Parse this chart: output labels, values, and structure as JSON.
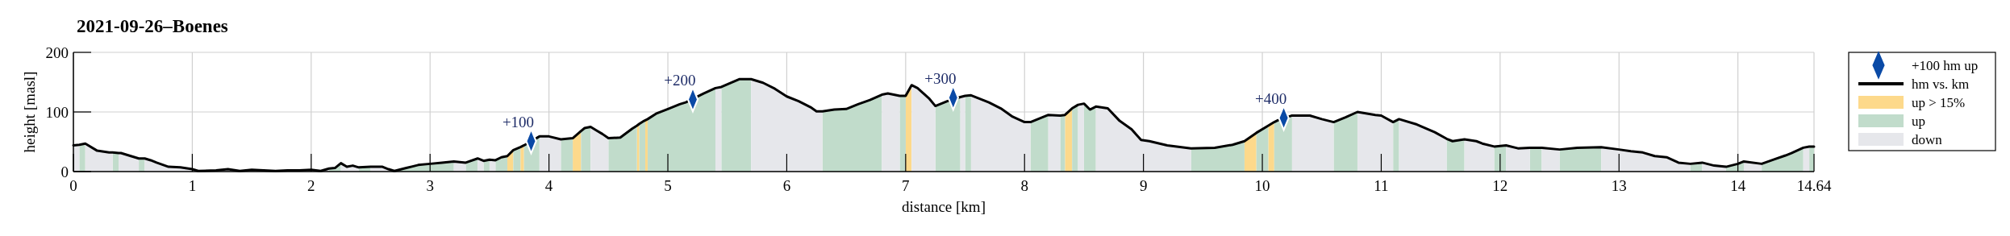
{
  "chart_data": {
    "type": "area",
    "title": "2021-09-26–Boenes",
    "xlabel": "distance [km]",
    "ylabel": "height [masl]",
    "xlim": [
      0,
      14.64
    ],
    "xticks": [
      0,
      1,
      2,
      3,
      4,
      5,
      6,
      7,
      8,
      9,
      10,
      11,
      12,
      13,
      14,
      14.64
    ],
    "ylim": [
      0,
      200
    ],
    "yticks": [
      0,
      100,
      200
    ],
    "grid": true,
    "legend": "right",
    "annotations": [
      {
        "text": "+100",
        "x": 3.85,
        "y": 51
      },
      {
        "text": "+200",
        "x": 5.21,
        "y": 121
      },
      {
        "text": "+300",
        "x": 7.4,
        "y": 124
      },
      {
        "text": "+400",
        "x": 10.18,
        "y": 90
      }
    ],
    "x": [
      0,
      0.05,
      0.1,
      0.2,
      0.3,
      0.33,
      0.38,
      0.4,
      0.45,
      0.5,
      0.55,
      0.6,
      0.65,
      0.7,
      0.8,
      0.9,
      1.0,
      1.05,
      1.2,
      1.3,
      1.4,
      1.5,
      1.6,
      1.7,
      1.8,
      1.9,
      2.0,
      2.08,
      2.15,
      2.2,
      2.25,
      2.3,
      2.35,
      2.4,
      2.5,
      2.6,
      2.65,
      2.7,
      2.8,
      2.9,
      3.0,
      3.1,
      3.2,
      3.3,
      3.4,
      3.45,
      3.5,
      3.55,
      3.6,
      3.65,
      3.7,
      3.76,
      3.79,
      3.92,
      4.0,
      4.1,
      4.2,
      4.27,
      4.3,
      4.35,
      4.4,
      4.45,
      4.5,
      4.6,
      4.7,
      4.74,
      4.76,
      4.8,
      4.81,
      4.83,
      4.9,
      5.0,
      5.1,
      5.15,
      5.3,
      5.4,
      5.45,
      5.6,
      5.7,
      5.8,
      5.9,
      6.0,
      6.1,
      6.2,
      6.25,
      6.3,
      6.4,
      6.5,
      6.6,
      6.7,
      6.8,
      6.85,
      6.95,
      7.0,
      7.05,
      7.1,
      7.2,
      7.25,
      7.35,
      7.46,
      7.5,
      7.55,
      7.7,
      7.8,
      7.9,
      8.0,
      8.05,
      8.2,
      8.3,
      8.34,
      8.4,
      8.45,
      8.5,
      8.55,
      8.6,
      8.7,
      8.8,
      8.9,
      8.98,
      9.05,
      9.2,
      9.4,
      9.6,
      9.75,
      9.85,
      9.95,
      10.05,
      10.1,
      10.13,
      10.25,
      10.4,
      10.5,
      10.6,
      10.7,
      10.8,
      10.95,
      11.0,
      11.1,
      11.15,
      11.3,
      11.45,
      11.55,
      11.6,
      11.7,
      11.8,
      11.85,
      11.95,
      12.05,
      12.15,
      12.25,
      12.35,
      12.5,
      12.65,
      12.85,
      13.0,
      13.1,
      13.2,
      13.3,
      13.4,
      13.5,
      13.6,
      13.7,
      13.8,
      13.9,
      14.0,
      14.05,
      14.2,
      14.3,
      14.4,
      14.45,
      14.55,
      14.6,
      14.64
    ],
    "series": [
      {
        "name": "+100 hm up",
        "type": "scatter",
        "marker": "diamond",
        "color": "#0a4aa6",
        "x": [
          3.85,
          5.21,
          7.4,
          10.18
        ],
        "values": [
          51,
          121,
          124,
          90
        ]
      },
      {
        "name": "hm vs. km",
        "type": "line",
        "color": "#000000",
        "line_style": "solid",
        "values": [
          44,
          45,
          47,
          35,
          32,
          32,
          31,
          31,
          28,
          25,
          22,
          22,
          19,
          15,
          8,
          7,
          4,
          1,
          2,
          4,
          1,
          3,
          2,
          1,
          2,
          2,
          3,
          1,
          5,
          6,
          14,
          8,
          10,
          7,
          8,
          8,
          4,
          1,
          6,
          11,
          13,
          15,
          17,
          15,
          22,
          18,
          20,
          19,
          24,
          26,
          36,
          41,
          44,
          59,
          59,
          54,
          56,
          68,
          73,
          75,
          69,
          63,
          56,
          57,
          72,
          77,
          80,
          85,
          86,
          88,
          97,
          105,
          113,
          116,
          131,
          140,
          142,
          155,
          155,
          149,
          139,
          126,
          118,
          108,
          101,
          101,
          104,
          105,
          113,
          120,
          129,
          131,
          127,
          127,
          145,
          140,
          122,
          110,
          118,
          125,
          127,
          128,
          116,
          106,
          92,
          83,
          83,
          95,
          94,
          95,
          106,
          112,
          114,
          104,
          109,
          106,
          85,
          71,
          53,
          51,
          44,
          39,
          40,
          45,
          51,
          65,
          77,
          83,
          86,
          94,
          94,
          88,
          83,
          91,
          100,
          95,
          94,
          83,
          88,
          79,
          66,
          55,
          51,
          54,
          51,
          47,
          42,
          44,
          39,
          40,
          40,
          37,
          40,
          41,
          37,
          34,
          32,
          26,
          24,
          15,
          13,
          15,
          10,
          8,
          13,
          17,
          13,
          20,
          27,
          31,
          40,
          42,
          42
        ]
      },
      {
        "name": "up > 15%",
        "color": "#fdd98b",
        "x": [
          3.65,
          3.7,
          null,
          3.76,
          3.79,
          null,
          4.2,
          4.27,
          null,
          4.74,
          4.76,
          null,
          4.81,
          4.83,
          null,
          7.0,
          7.05,
          null,
          8.34,
          8.4,
          null,
          9.85,
          9.95,
          null,
          10.05,
          10.1
        ],
        "values": [
          26,
          36,
          null,
          41,
          44,
          null,
          56,
          68,
          null,
          77,
          80,
          null,
          86,
          88,
          null,
          127,
          145,
          null,
          95,
          106,
          null,
          51,
          65,
          null,
          77,
          83
        ]
      },
      {
        "name": "up",
        "color": "#c1dccb",
        "x": [
          0.05,
          0.1,
          null,
          0.33,
          0.38,
          null,
          0.55,
          0.6,
          null,
          2.15,
          2.2,
          2.25,
          null,
          2.4,
          2.5,
          null,
          2.7,
          2.8,
          2.9,
          3.0,
          3.1,
          3.2,
          null,
          3.3,
          3.4,
          null,
          3.45,
          3.5,
          null,
          3.55,
          3.6,
          3.65,
          null,
          3.7,
          3.76,
          null,
          3.79,
          3.92,
          null,
          4.1,
          4.2,
          null,
          4.27,
          4.3,
          4.35,
          null,
          4.5,
          4.6,
          4.7,
          4.74,
          null,
          4.76,
          4.8,
          4.81,
          null,
          4.83,
          4.9,
          5.0,
          5.1,
          5.15,
          5.3,
          5.4,
          null,
          5.45,
          5.6,
          5.7,
          null,
          6.3,
          6.4,
          6.5,
          6.6,
          6.7,
          6.8,
          null,
          6.95,
          7.0,
          null,
          7.25,
          7.35,
          7.46,
          null,
          7.5,
          7.55,
          null,
          8.05,
          8.2,
          null,
          8.3,
          8.34,
          null,
          8.4,
          8.45,
          null,
          8.5,
          8.55,
          8.6,
          null,
          9.4,
          9.6,
          9.75,
          9.85,
          null,
          9.95,
          10.05,
          null,
          10.1,
          10.13,
          10.25,
          null,
          10.6,
          10.7,
          10.8,
          null,
          11.1,
          11.15,
          null,
          11.55,
          11.6,
          11.7,
          null,
          11.95,
          12.05,
          null,
          12.25,
          12.35,
          null,
          12.5,
          12.65,
          12.85,
          null,
          13.6,
          13.7,
          null,
          13.9,
          14.0,
          14.05,
          null,
          14.2,
          14.3,
          14.4,
          14.45,
          14.55,
          null,
          14.6,
          14.64
        ],
        "values": [
          45,
          47,
          null,
          32,
          31,
          null,
          22,
          22,
          null,
          5,
          6,
          14,
          null,
          7,
          8,
          null,
          1,
          6,
          11,
          13,
          15,
          17,
          null,
          15,
          22,
          null,
          18,
          20,
          null,
          19,
          24,
          26,
          null,
          36,
          41,
          null,
          44,
          59,
          null,
          54,
          56,
          null,
          68,
          73,
          75,
          null,
          56,
          57,
          72,
          77,
          null,
          80,
          85,
          86,
          null,
          88,
          97,
          105,
          113,
          116,
          131,
          140,
          null,
          142,
          155,
          155,
          null,
          101,
          104,
          105,
          113,
          120,
          129,
          null,
          127,
          127,
          null,
          110,
          118,
          125,
          null,
          127,
          128,
          null,
          83,
          95,
          null,
          94,
          95,
          null,
          106,
          112,
          null,
          114,
          104,
          109,
          null,
          39,
          40,
          45,
          51,
          null,
          65,
          77,
          null,
          83,
          86,
          94,
          null,
          83,
          91,
          100,
          null,
          83,
          88,
          null,
          55,
          51,
          54,
          null,
          42,
          44,
          null,
          40,
          40,
          null,
          37,
          40,
          41,
          null,
          13,
          15,
          null,
          8,
          13,
          17,
          null,
          13,
          20,
          27,
          31,
          40,
          null,
          42,
          42
        ]
      },
      {
        "name": "down",
        "color": "#e6e7eb",
        "x": [
          0,
          0.05,
          null,
          0.1,
          0.2,
          0.3,
          0.33,
          null,
          0.38,
          0.4,
          0.45,
          0.5,
          0.55,
          null,
          0.6,
          0.65,
          0.7,
          0.8,
          0.9,
          1.0,
          1.05,
          1.2,
          1.3,
          1.4,
          1.5,
          1.6,
          1.7,
          1.8,
          1.9,
          2.0,
          2.08,
          2.15,
          null,
          2.25,
          2.3,
          2.35,
          2.4,
          null,
          2.5,
          2.6,
          2.65,
          2.7,
          null,
          3.2,
          3.3,
          null,
          3.4,
          3.45,
          null,
          3.5,
          3.55,
          null,
          3.92,
          4.0,
          4.1,
          null,
          4.35,
          4.4,
          4.45,
          4.5,
          null,
          5.4,
          5.45,
          null,
          5.7,
          5.8,
          5.9,
          6.0,
          6.1,
          6.2,
          6.25,
          6.3,
          null,
          6.8,
          6.85,
          6.95,
          null,
          7.05,
          7.1,
          7.2,
          7.25,
          null,
          7.46,
          7.5,
          null,
          7.55,
          7.7,
          7.8,
          7.9,
          8.0,
          8.05,
          null,
          8.2,
          8.3,
          null,
          8.45,
          8.5,
          null,
          8.6,
          8.7,
          8.8,
          8.9,
          8.98,
          9.05,
          9.2,
          9.4,
          null,
          10.25,
          10.4,
          10.5,
          10.6,
          null,
          10.8,
          10.95,
          11.0,
          11.1,
          null,
          11.15,
          11.3,
          11.45,
          11.55,
          null,
          11.7,
          11.8,
          11.85,
          11.95,
          null,
          12.05,
          12.15,
          12.25,
          null,
          12.35,
          12.5,
          null,
          12.85,
          13.0,
          13.1,
          13.2,
          13.3,
          13.4,
          13.5,
          13.6,
          null,
          13.7,
          13.8,
          13.9,
          null,
          14.05,
          14.2,
          null,
          14.55,
          14.6
        ],
        "values": [
          44,
          45,
          null,
          47,
          35,
          32,
          32,
          null,
          31,
          31,
          28,
          25,
          22,
          null,
          22,
          19,
          15,
          8,
          7,
          4,
          1,
          2,
          4,
          1,
          3,
          2,
          1,
          2,
          2,
          3,
          1,
          5,
          null,
          14,
          8,
          10,
          7,
          null,
          8,
          8,
          4,
          1,
          null,
          17,
          15,
          null,
          22,
          18,
          null,
          20,
          19,
          null,
          59,
          59,
          54,
          null,
          75,
          69,
          63,
          56,
          null,
          140,
          142,
          null,
          155,
          149,
          139,
          126,
          118,
          108,
          101,
          101,
          null,
          129,
          131,
          127,
          null,
          145,
          140,
          122,
          110,
          null,
          125,
          127,
          null,
          128,
          116,
          106,
          92,
          83,
          83,
          null,
          95,
          94,
          null,
          112,
          114,
          null,
          109,
          106,
          85,
          71,
          53,
          51,
          44,
          39,
          null,
          94,
          94,
          88,
          83,
          null,
          100,
          95,
          94,
          83,
          null,
          88,
          79,
          66,
          55,
          null,
          54,
          51,
          47,
          42,
          null,
          44,
          39,
          40,
          null,
          40,
          37,
          null,
          41,
          37,
          34,
          32,
          26,
          24,
          15,
          13,
          null,
          15,
          10,
          8,
          null,
          17,
          13,
          null,
          40,
          42
        ]
      }
    ]
  }
}
